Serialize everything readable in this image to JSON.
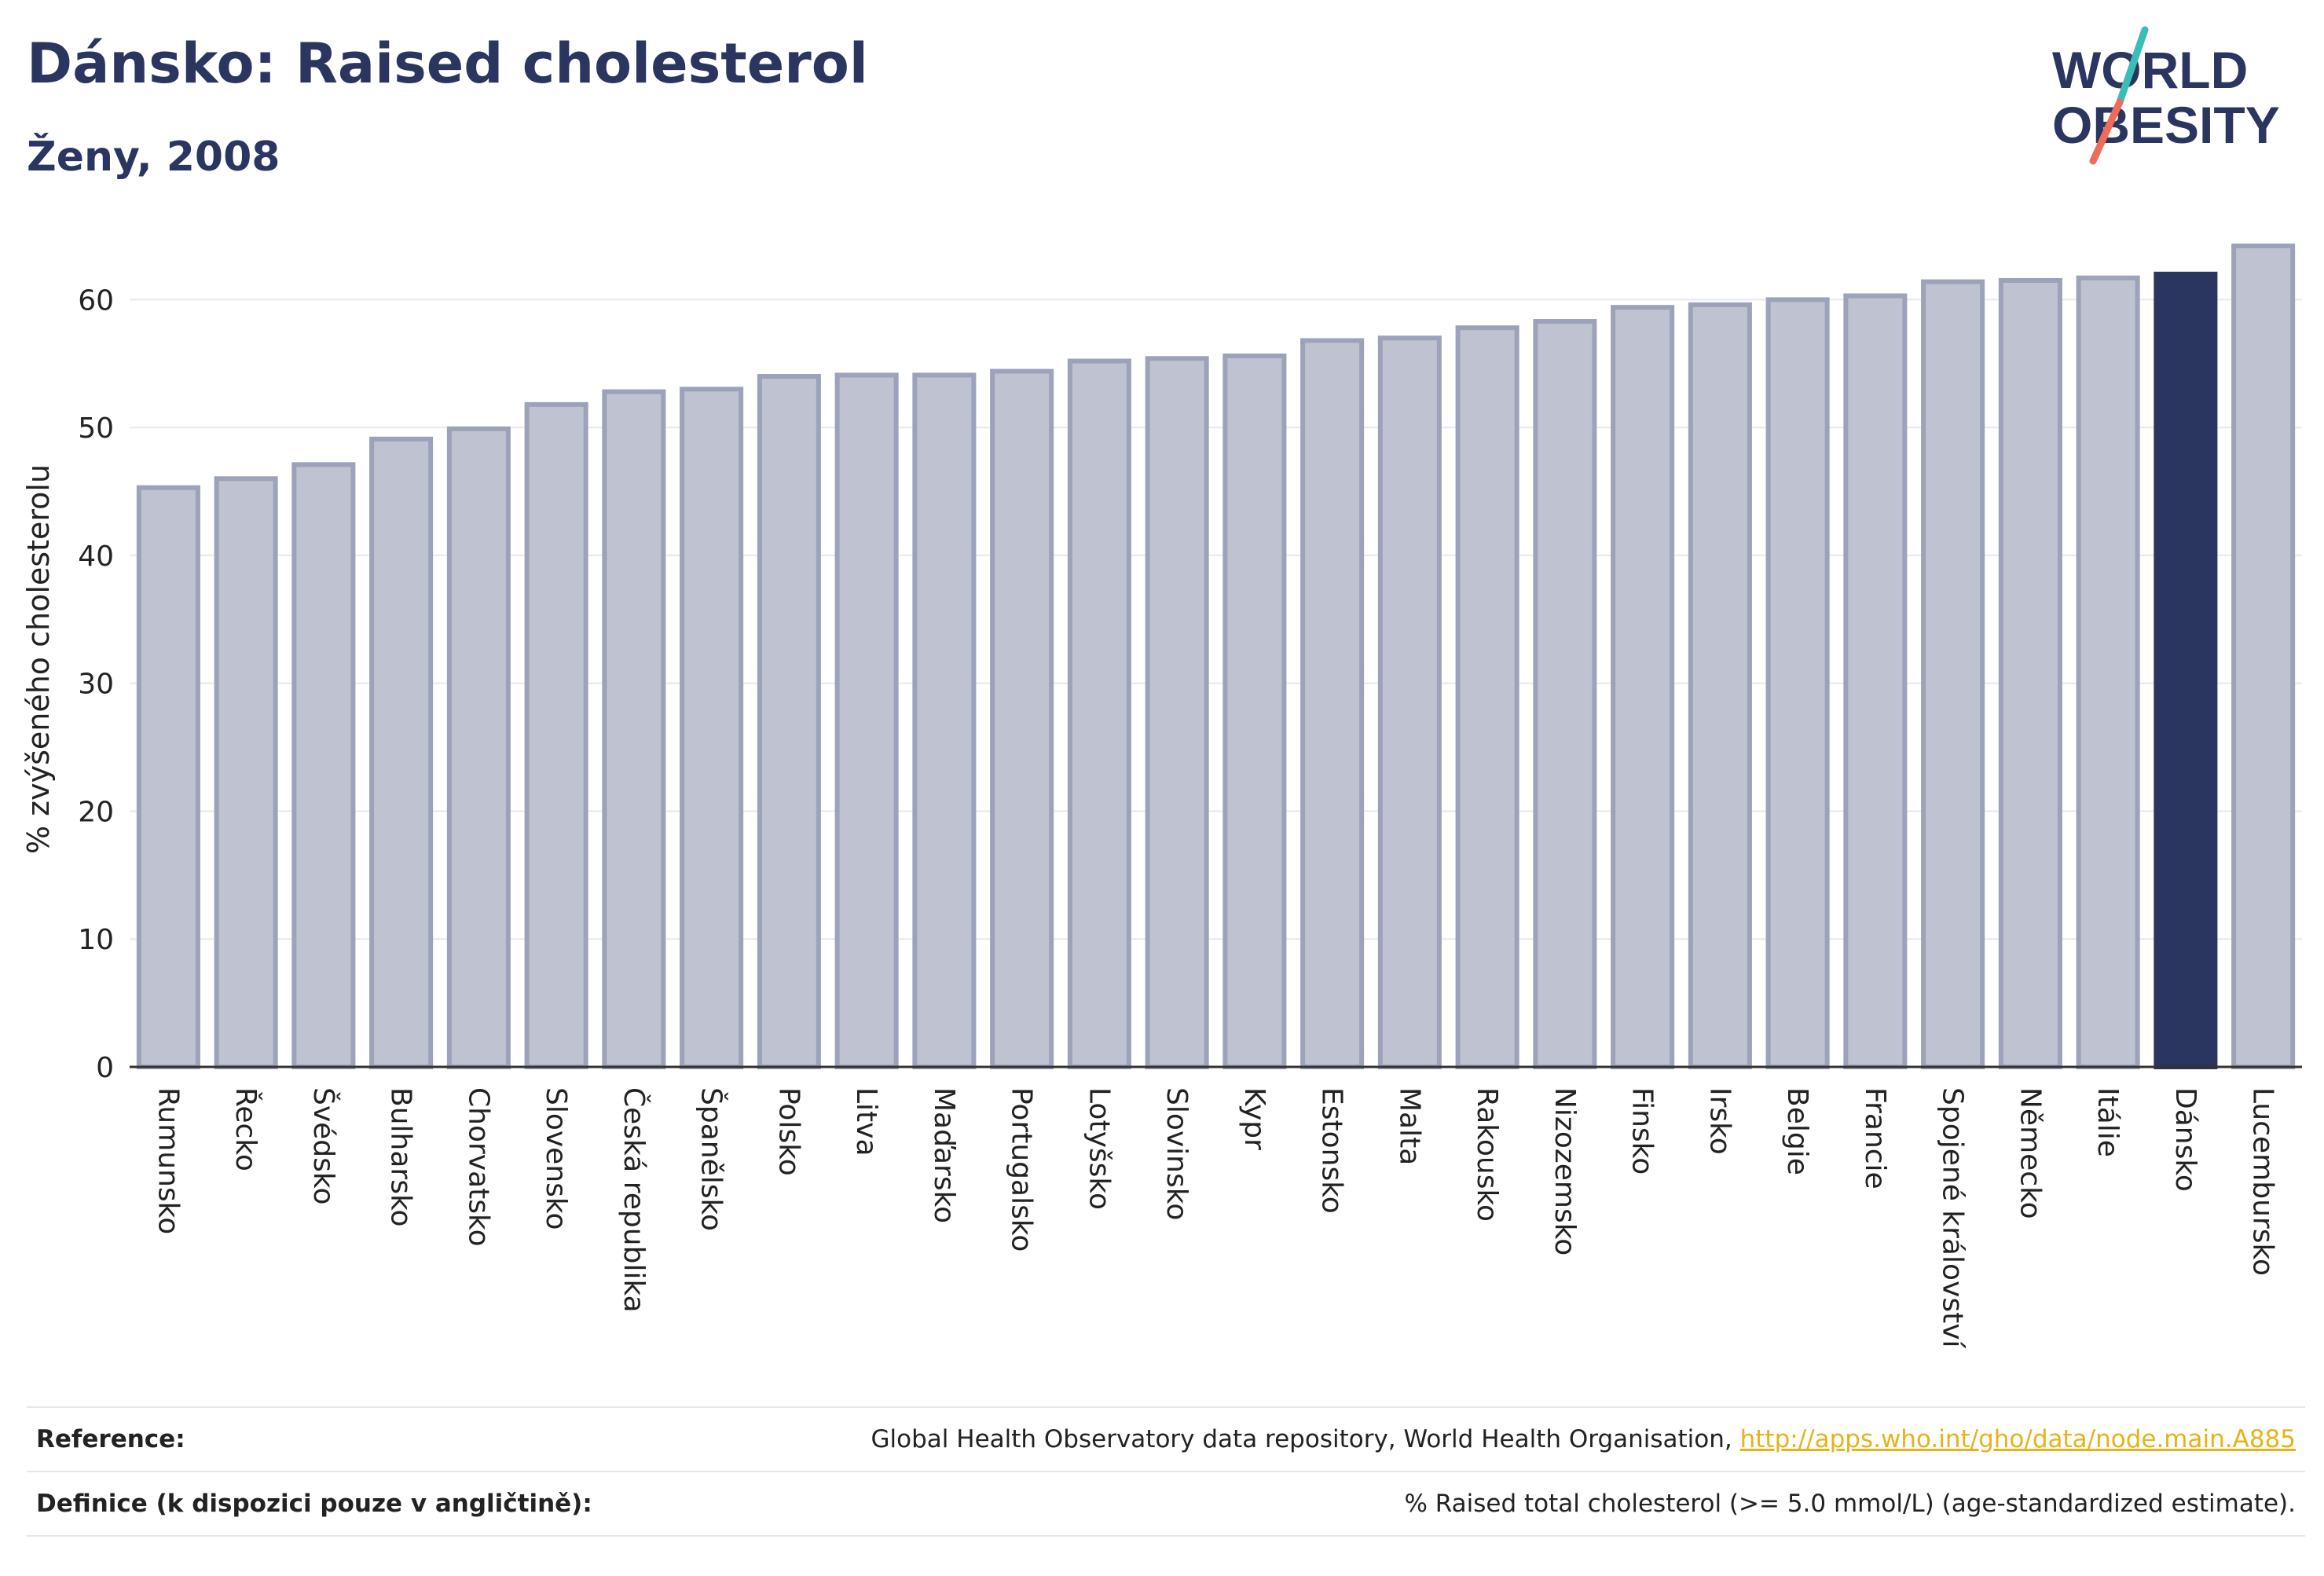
{
  "header": {
    "title": "Dánsko: Raised cholesterol",
    "subtitle": "Ženy, 2008"
  },
  "logo": {
    "line1": "WORLD",
    "line2": "OBESITY"
  },
  "colors": {
    "bar": "#bfc2d0",
    "bar_border": "#9ca2ba",
    "highlight": "#2a3560",
    "grid": "#e8e8ee",
    "axis": "#333333",
    "link": "#e5b31a",
    "logo_teal": "#3bbdb7",
    "logo_coral": "#ef6c5a"
  },
  "chart_data": {
    "type": "bar",
    "ylabel": "% zvýšeného cholesterolu",
    "ylim": [
      0,
      65
    ],
    "yticks": [
      0,
      10,
      20,
      30,
      40,
      50,
      60
    ],
    "grid": true,
    "highlight": "Dánsko",
    "categories": [
      "Rumunsko",
      "Řecko",
      "Švédsko",
      "Bulharsko",
      "Chorvatsko",
      "Slovensko",
      "Česká republika",
      "Španělsko",
      "Polsko",
      "Litva",
      "Maďarsko",
      "Portugalsko",
      "Lotyšsko",
      "Slovinsko",
      "Kypr",
      "Estonsko",
      "Malta",
      "Rakousko",
      "Nizozemsko",
      "Finsko",
      "Irsko",
      "Belgie",
      "Francie",
      "Spojené království",
      "Německo",
      "Itálie",
      "Dánsko",
      "Lucembursko"
    ],
    "values": [
      45.3,
      46.0,
      47.1,
      49.1,
      49.9,
      51.8,
      52.8,
      53.0,
      54.0,
      54.1,
      54.1,
      54.4,
      55.2,
      55.4,
      55.6,
      56.8,
      57.0,
      57.8,
      58.3,
      59.4,
      59.6,
      60.0,
      60.3,
      61.4,
      61.5,
      61.7,
      62.0,
      64.2
    ]
  },
  "references": {
    "reference_label": "Reference:",
    "reference_text": "Global Health Observatory data repository, World Health Organisation, ",
    "reference_link": "http://apps.who.int/gho/data/node.main.A885",
    "definition_label": "Definice (k dispozici pouze v angličtině):",
    "definition_text": "% Raised total cholesterol (>= 5.0 mmol/L) (age-standardized estimate)."
  }
}
